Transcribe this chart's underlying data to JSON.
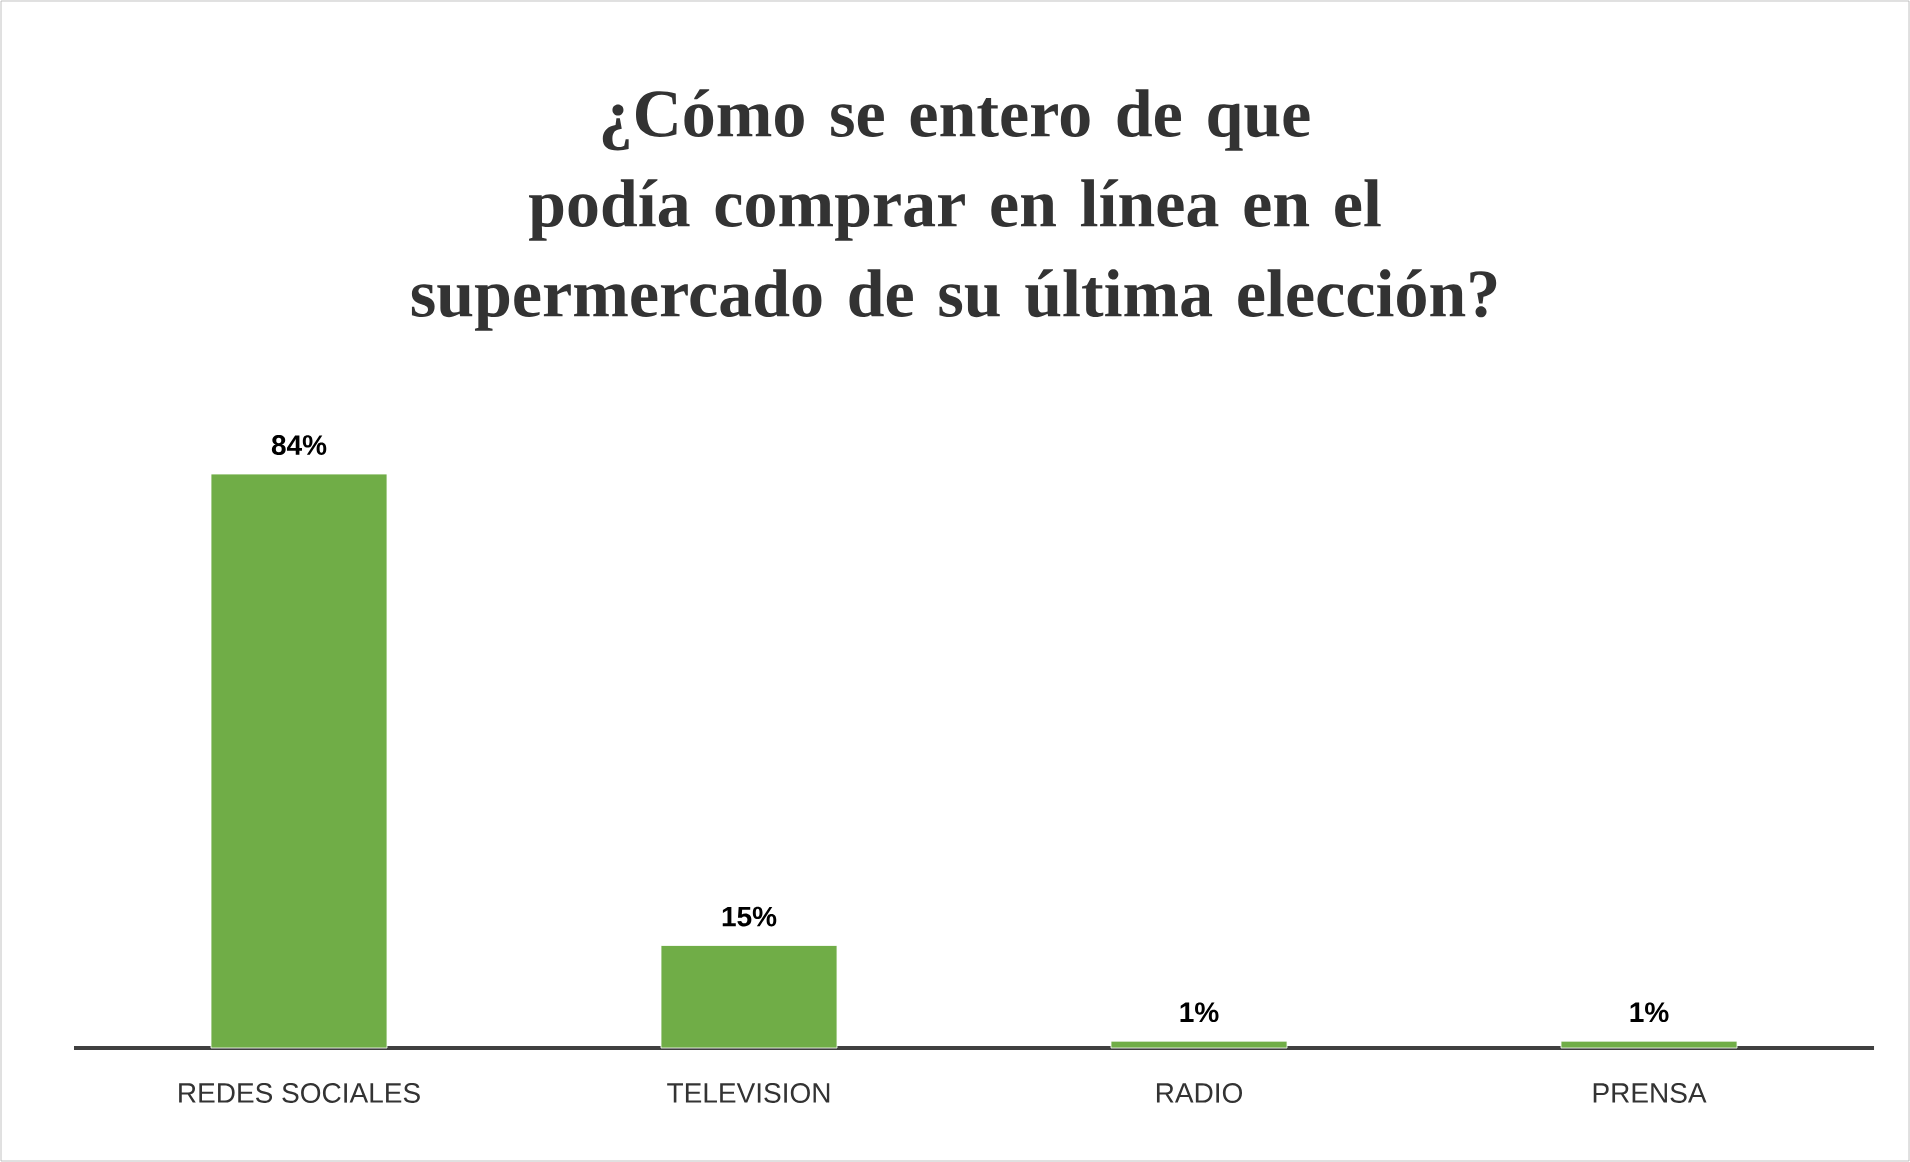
{
  "chart_data": {
    "type": "bar",
    "title": "¿Cómo se entero de que podía comprar en línea en el supermercado de su última elección?",
    "categories": [
      "REDES SOCIALES",
      "TELEVISION",
      "RADIO",
      "PRENSA"
    ],
    "values": [
      84,
      15,
      1,
      1
    ],
    "value_labels": [
      "84%",
      "15%",
      "1%",
      "1%"
    ],
    "color": "#70ad47"
  }
}
